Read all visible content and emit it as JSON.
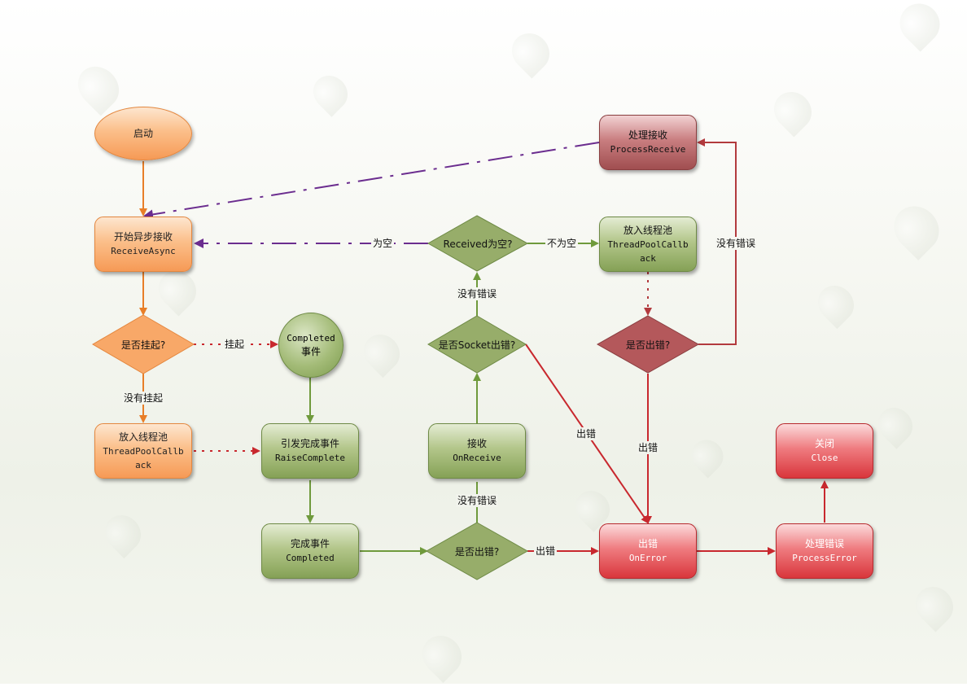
{
  "nodes": {
    "start": "启动",
    "begin_receive": {
      "line1": "开始异步接收",
      "line2": "ReceiveAsync"
    },
    "is_pending": "是否挂起?",
    "completed_event": {
      "line1": "Completed",
      "line2": "事件"
    },
    "threadpool_left": {
      "line1": "放入线程池",
      "line2": "ThreadPoolCallb",
      "line3": "ack"
    },
    "raise_complete": {
      "line1": "引发完成事件",
      "line2": "RaiseComplete"
    },
    "complete_event": {
      "line1": "完成事件",
      "line2": "Completed"
    },
    "is_error_bottom": "是否出错?",
    "on_receive": {
      "line1": "接收",
      "line2": "OnReceive"
    },
    "is_socket_error": "是否Socket出错?",
    "received_empty": "Received为空?",
    "threadpool_right": {
      "line1": "放入线程池",
      "line2": "ThreadPoolCallb",
      "line3": "ack"
    },
    "is_error_right": "是否出错?",
    "process_receive": {
      "line1": "处理接收",
      "line2": "ProcessReceive"
    },
    "on_error": {
      "line1": "出错",
      "line2": "OnError"
    },
    "process_error": {
      "line1": "处理错误",
      "line2": "ProcessError"
    },
    "close": {
      "line1": "关闭",
      "line2": "Close"
    }
  },
  "edge_labels": {
    "pending": "挂起",
    "not_pending": "没有挂起",
    "is_empty": "为空",
    "not_empty": "不为空",
    "no_error_up": "没有错误",
    "no_error_mid": "没有错误",
    "no_error_right": "没有错误",
    "error_socket": "出错",
    "error_right": "出错",
    "error_bottom": "出错"
  },
  "colors": {
    "orange_line": "#e87e28",
    "green_line": "#6f9a3c",
    "purple_line": "#6b2d8f",
    "red_line": "#c8282e",
    "darkred_line": "#b23a3e"
  }
}
